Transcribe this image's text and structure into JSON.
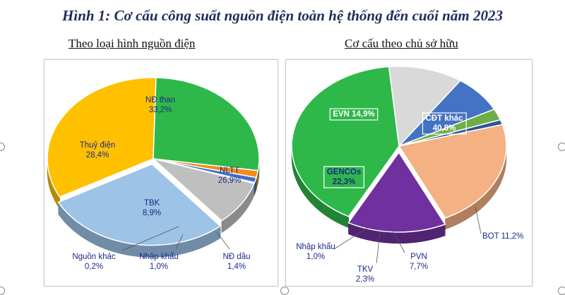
{
  "title": "Hình 1: Cơ cấu công suất nguồn điện toàn hệ thống đến cuối năm 2023",
  "chart_data": [
    {
      "type": "pie",
      "title": "Theo loại hình nguồn điện",
      "slices": [
        {
          "name": "NĐ than",
          "value": 33.2,
          "label": "33,2%",
          "color": "#ffc000"
        },
        {
          "name": "NLTT",
          "value": 26.9,
          "label": "26,9%",
          "color": "#2eb849"
        },
        {
          "name": "NĐ dầu",
          "value": 1.4,
          "label": "1,4%",
          "color": "#f28c1c"
        },
        {
          "name": "Nhập khẩu",
          "value": 1.0,
          "label": "1,0%",
          "color": "#3d6fc7"
        },
        {
          "name": "Nguồn khác",
          "value": 0.2,
          "label": "0,2%",
          "color": "#5a7a3a"
        },
        {
          "name": "TBK",
          "value": 8.9,
          "label": "8,9%",
          "color": "#bfbfbf"
        },
        {
          "name": "Thuỷ điện",
          "value": 28.4,
          "label": "28,4%",
          "color": "#9dc3e6"
        }
      ]
    },
    {
      "type": "pie",
      "title": "Cơ cấu theo chủ sở hữu",
      "slices": [
        {
          "name": "CĐT khác",
          "value": 40.8,
          "label": "40,8%",
          "color": "#2eb849"
        },
        {
          "name": "BOT",
          "value": 11.2,
          "label": "11,2%",
          "color": "#d9d9d9"
        },
        {
          "name": "PVN",
          "value": 7.7,
          "label": "7,7%",
          "color": "#4472c4"
        },
        {
          "name": "TKV",
          "value": 2.3,
          "label": "2,3%",
          "color": "#70ad47"
        },
        {
          "name": "Nhập khẩu",
          "value": 1.0,
          "label": "1,0%",
          "color": "#2f5597"
        },
        {
          "name": "GENCOs",
          "value": 22.3,
          "label": "22,3%",
          "color": "#f4b183"
        },
        {
          "name": "EVN",
          "value": 14.9,
          "label": "14,9%",
          "color": "#7030a0"
        }
      ]
    }
  ]
}
